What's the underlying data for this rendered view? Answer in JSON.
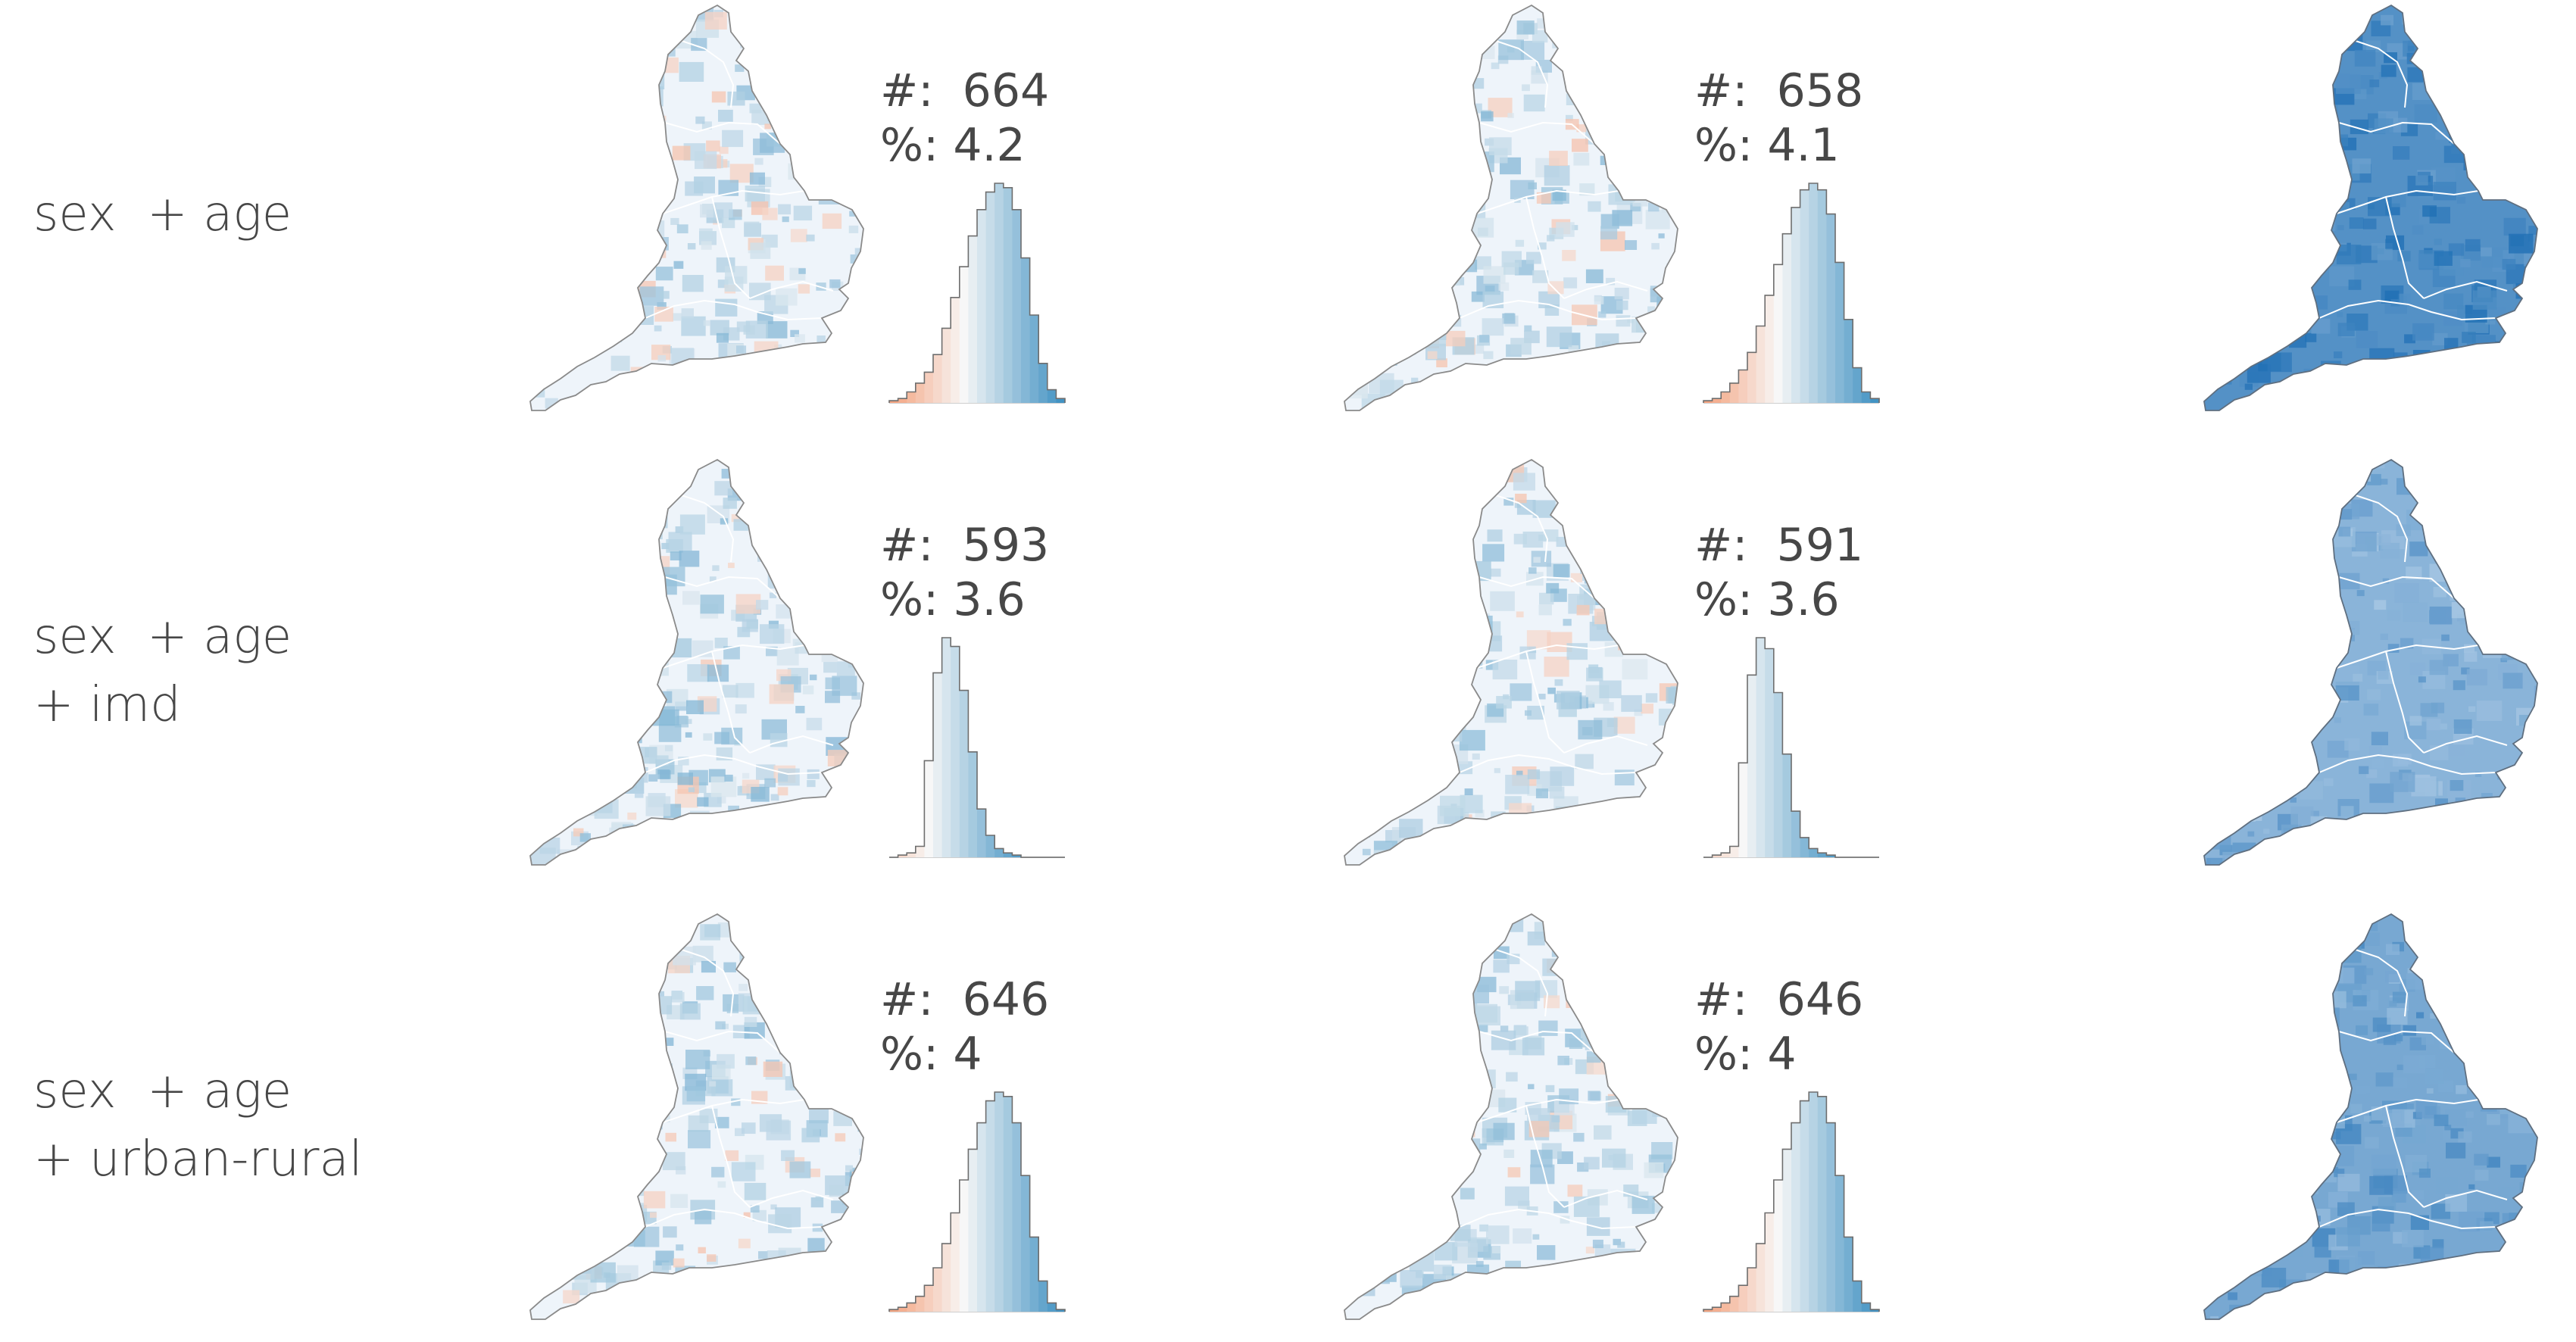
{
  "colors": {
    "diverging_neg": "#f4a582",
    "diverging_mid": "#f7f7f7",
    "diverging_pos": "#4393c3",
    "map_outline": "#8a8a8a",
    "region_boundary": "#ffffff",
    "text": "#474747"
  },
  "chart_data": [
    {
      "type": "small-multiples-map-grid",
      "rows": [
        {
          "label_lines": [
            "sex  + age"
          ],
          "panels": [
            {
              "kind": "residual-map-with-histogram",
              "count_label": "#:",
              "count": "664",
              "percent_label": "%:",
              "percent": "4.2",
              "histogram": {
                "min_class": -8,
                "values": [
                  1,
                  2,
                  5,
                  9,
                  14,
                  22,
                  34,
                  48,
                  62,
                  76,
                  88,
                  96,
                  100,
                  98,
                  88,
                  66,
                  40,
                  18,
                  6,
                  2
                ]
              }
            },
            {
              "kind": "residual-map-with-histogram",
              "count_label": "#:",
              "count": "658",
              "percent_label": "%:",
              "percent": "4.1",
              "histogram": {
                "min_class": -8,
                "values": [
                  1,
                  2,
                  5,
                  9,
                  15,
                  23,
                  35,
                  49,
                  63,
                  77,
                  89,
                  97,
                  100,
                  97,
                  86,
                  64,
                  38,
                  16,
                  5,
                  2
                ]
              }
            },
            {
              "kind": "choropleth",
              "shade": 0.82
            }
          ]
        },
        {
          "label_lines": [
            "sex  + age",
            "+ imd"
          ],
          "panels": [
            {
              "kind": "residual-map-with-histogram",
              "count_label": "#:",
              "count": "593",
              "percent_label": "%:",
              "percent": "3.6",
              "histogram": {
                "min_class": -4,
                "values": [
                  0,
                  1,
                  2,
                  5,
                  44,
                  84,
                  100,
                  96,
                  76,
                  48,
                  22,
                  10,
                  4,
                  2,
                  1,
                  0,
                  0,
                  0,
                  0,
                  0
                ]
              }
            },
            {
              "kind": "residual-map-with-histogram",
              "count_label": "#:",
              "count": "591",
              "percent_label": "%:",
              "percent": "3.6",
              "histogram": {
                "min_class": -4,
                "values": [
                  0,
                  1,
                  2,
                  5,
                  43,
                  83,
                  100,
                  95,
                  75,
                  47,
                  21,
                  9,
                  4,
                  2,
                  1,
                  0,
                  0,
                  0,
                  0,
                  0
                ]
              }
            },
            {
              "kind": "choropleth",
              "shade": 0.52
            }
          ]
        },
        {
          "label_lines": [
            "sex  + age",
            "+ urban-rural"
          ],
          "panels": [
            {
              "kind": "residual-map-with-histogram",
              "count_label": "#:",
              "count": "646",
              "percent_label": "%:",
              "percent": "4",
              "histogram": {
                "min_class": -8,
                "values": [
                  1,
                  2,
                  4,
                  7,
                  12,
                  20,
                  31,
                  45,
                  60,
                  74,
                  86,
                  96,
                  100,
                  98,
                  86,
                  62,
                  34,
                  14,
                  4,
                  1
                ]
              }
            },
            {
              "kind": "residual-map-with-histogram",
              "count_label": "#:",
              "count": "646",
              "percent_label": "%:",
              "percent": "4",
              "histogram": {
                "min_class": -8,
                "values": [
                  1,
                  2,
                  4,
                  7,
                  12,
                  20,
                  31,
                  45,
                  60,
                  74,
                  86,
                  96,
                  100,
                  98,
                  86,
                  62,
                  34,
                  14,
                  4,
                  1
                ]
              }
            },
            {
              "kind": "choropleth",
              "shade": 0.62
            }
          ]
        }
      ]
    }
  ]
}
